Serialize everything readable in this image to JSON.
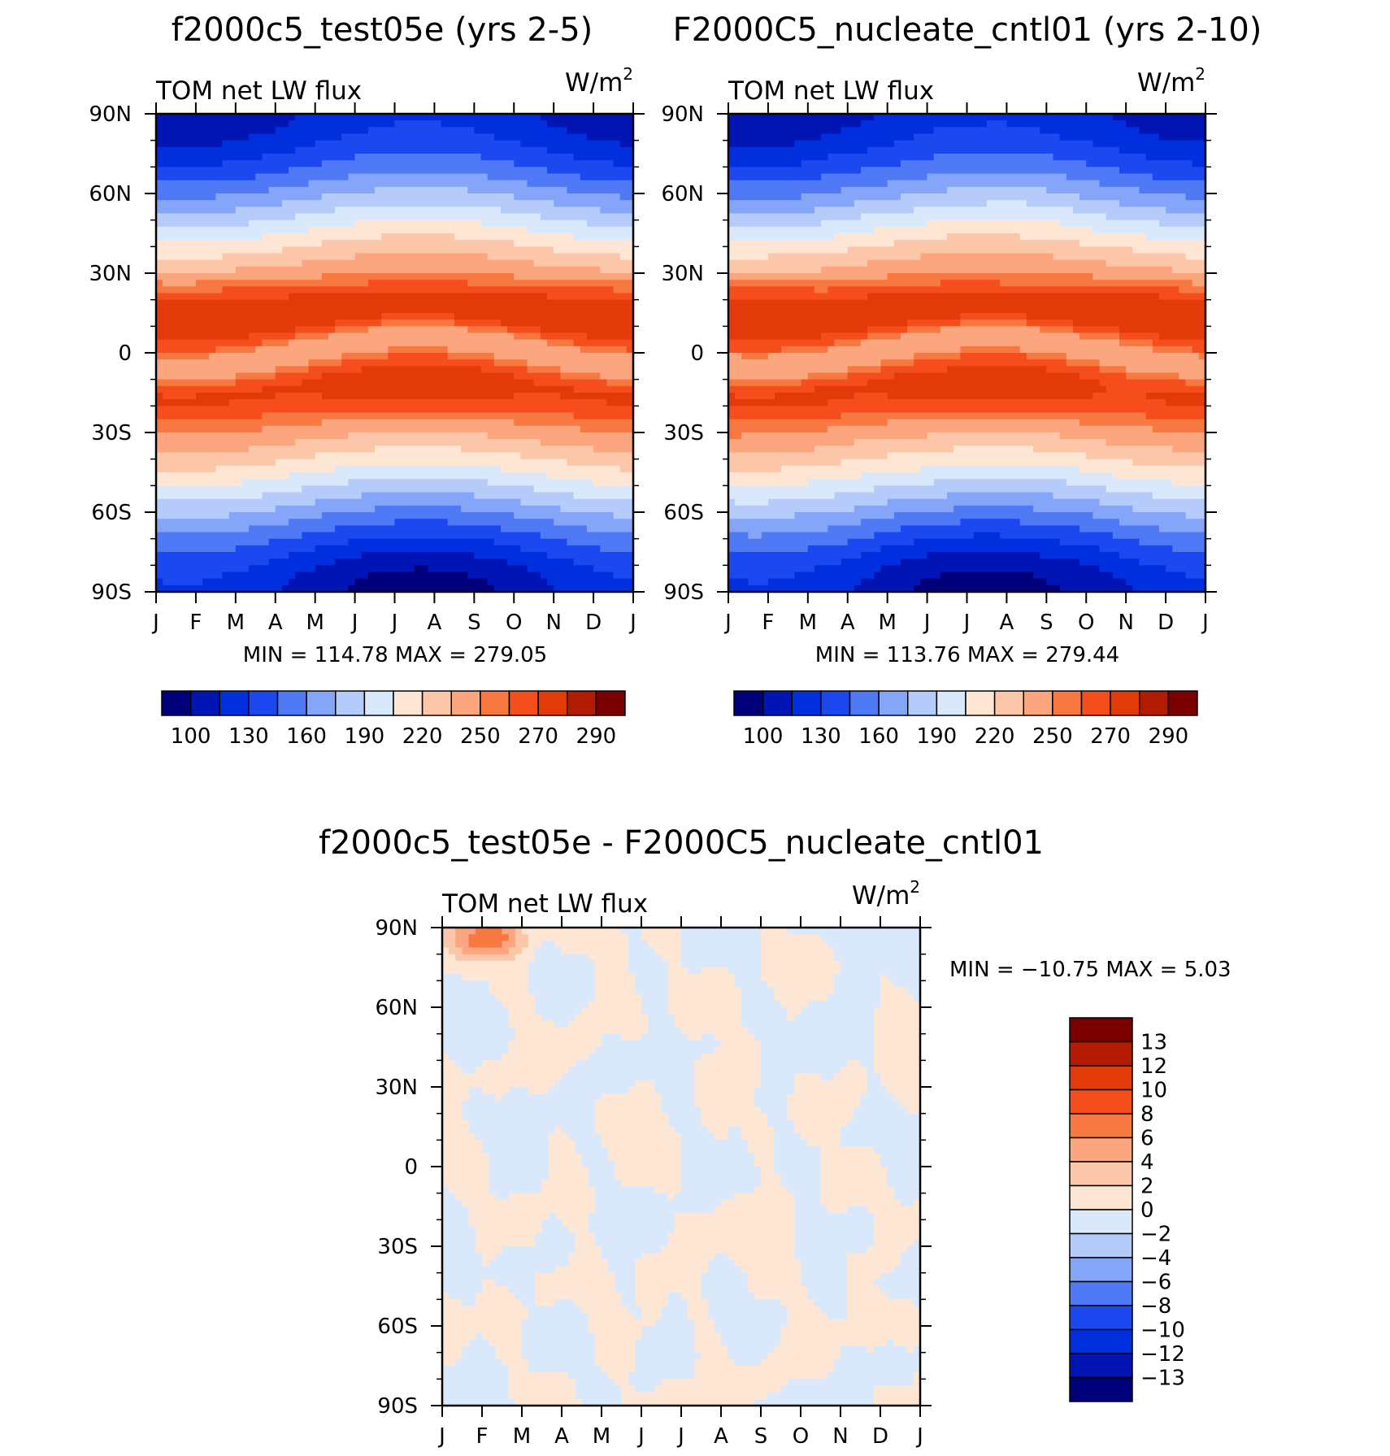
{
  "chart_data": [
    {
      "type": "heatmap",
      "title": "f2000c5_test05e (yrs 2-5)",
      "left_label": "TOM net LW flux",
      "units": "W/m",
      "units_sup": "2",
      "x_tick_labels": [
        "J",
        "F",
        "M",
        "A",
        "M",
        "J",
        "J",
        "A",
        "S",
        "O",
        "N",
        "D",
        "J"
      ],
      "y_tick_labels": [
        "90N",
        "60N",
        "30N",
        "0",
        "30S",
        "60S",
        "90S"
      ],
      "ylim": [
        -90,
        90
      ],
      "stats": "MIN = 114.78 MAX = 279.05",
      "colorbar_labels": [
        "100",
        "130",
        "160",
        "190",
        "220",
        "250",
        "270",
        "290"
      ],
      "colorbar_colors": [
        "#00007a",
        "#0015b3",
        "#0030dd",
        "#1c48f0",
        "#4f79f5",
        "#85a6f8",
        "#b5cbfa",
        "#d9e8fb",
        "#fde7d4",
        "#fcc6a8",
        "#fba67e",
        "#f87841",
        "#f54e1c",
        "#e33a0a",
        "#b31c02",
        "#7c0000"
      ],
      "contour_levels": [
        100,
        115,
        130,
        145,
        160,
        175,
        190,
        205,
        220,
        235,
        250,
        260,
        270,
        280,
        290
      ]
    },
    {
      "type": "heatmap",
      "title": "F2000C5_nucleate_cntl01 (yrs 2-10)",
      "left_label": "TOM net LW flux",
      "units": "W/m",
      "units_sup": "2",
      "x_tick_labels": [
        "J",
        "F",
        "M",
        "A",
        "M",
        "J",
        "J",
        "A",
        "S",
        "O",
        "N",
        "D",
        "J"
      ],
      "y_tick_labels": [
        "90N",
        "60N",
        "30N",
        "0",
        "30S",
        "60S",
        "90S"
      ],
      "ylim": [
        -90,
        90
      ],
      "stats": "MIN = 113.76 MAX = 279.44",
      "colorbar_labels": [
        "100",
        "130",
        "160",
        "190",
        "220",
        "250",
        "270",
        "290"
      ],
      "colorbar_colors": [
        "#00007a",
        "#0015b3",
        "#0030dd",
        "#1c48f0",
        "#4f79f5",
        "#85a6f8",
        "#b5cbfa",
        "#d9e8fb",
        "#fde7d4",
        "#fcc6a8",
        "#fba67e",
        "#f87841",
        "#f54e1c",
        "#e33a0a",
        "#b31c02",
        "#7c0000"
      ],
      "contour_levels": [
        100,
        115,
        130,
        145,
        160,
        175,
        190,
        205,
        220,
        235,
        250,
        260,
        270,
        280,
        290
      ]
    },
    {
      "type": "heatmap",
      "title": "f2000c5_test05e - F2000C5_nucleate_cntl01",
      "left_label": "TOM net LW flux",
      "units": "W/m",
      "units_sup": "2",
      "x_tick_labels": [
        "J",
        "F",
        "M",
        "A",
        "M",
        "J",
        "J",
        "A",
        "S",
        "O",
        "N",
        "D",
        "J"
      ],
      "y_tick_labels": [
        "90N",
        "60N",
        "30N",
        "0",
        "30S",
        "60S",
        "90S"
      ],
      "ylim": [
        -90,
        90
      ],
      "stats": "MIN = −10.75 MAX =    5.03",
      "colorbar_labels": [
        "13",
        "12",
        "10",
        "8",
        "6",
        "4",
        "2",
        "0",
        "−2",
        "−4",
        "−6",
        "−8",
        "−10",
        "−12",
        "−13"
      ],
      "colorbar_colors": [
        "#7c0000",
        "#b31c02",
        "#e33a0a",
        "#f54e1c",
        "#f87841",
        "#fba67e",
        "#fcc6a8",
        "#fde7d4",
        "#d9e8fb",
        "#b5cbfa",
        "#85a6f8",
        "#4f79f5",
        "#1c48f0",
        "#0030dd",
        "#0015b3",
        "#00007a"
      ],
      "contour_levels": [
        -13,
        -12,
        -10,
        -8,
        -6,
        -4,
        -2,
        0,
        2,
        4,
        6,
        8,
        10,
        12,
        13
      ]
    }
  ]
}
